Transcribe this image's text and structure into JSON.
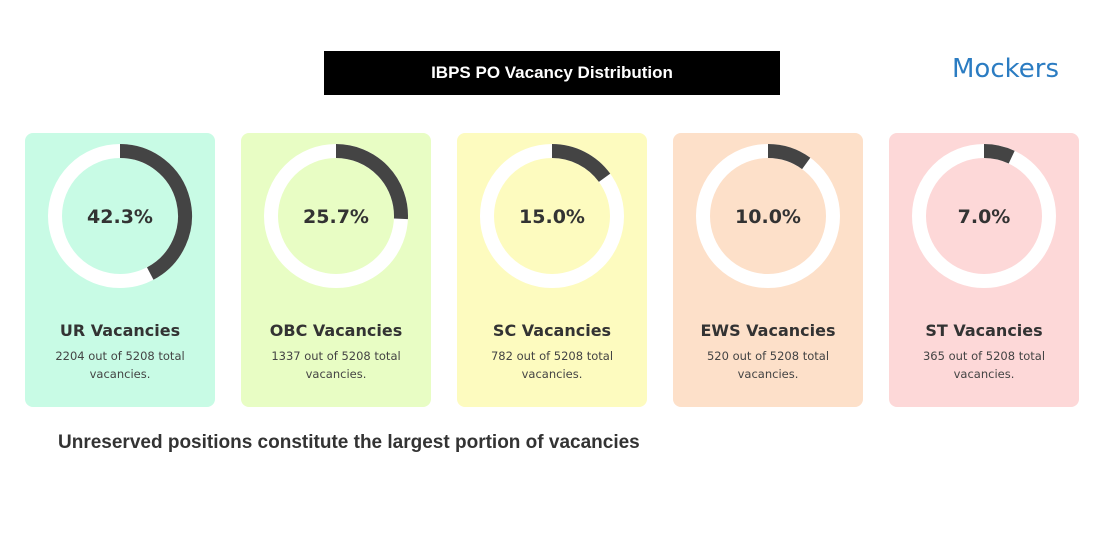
{
  "chart_data": {
    "type": "gauge",
    "title": "IBPS PO Vacancy Distribution",
    "categories": [
      "UR Vacancies",
      "OBC Vacancies",
      "SC Vacancies",
      "EWS Vacancies",
      "ST Vacancies"
    ],
    "descriptions": [
      "2204 out of 5208 total vacancies.",
      "1337 out of 5208 total vacancies.",
      "782 out of 5208 total vacancies.",
      "520 out of 5208 total vacancies.",
      "365 out of 5208 total vacancies."
    ],
    "values": [
      42.3,
      25.7,
      15.0,
      10.0,
      7.0
    ],
    "value_labels": [
      "42.3%",
      "25.7%",
      "15.0%",
      "10.0%",
      "7.0%"
    ],
    "card_colors": [
      "#c8fbe5",
      "#e8fdc4",
      "#fdfbbf",
      "#fde0c9",
      "#fdd8d8"
    ],
    "arc_color": "#444444",
    "ylim": [
      0,
      100
    ]
  },
  "logo": "Mockers",
  "caption": "Unreserved positions constitute the largest portion of vacancies"
}
